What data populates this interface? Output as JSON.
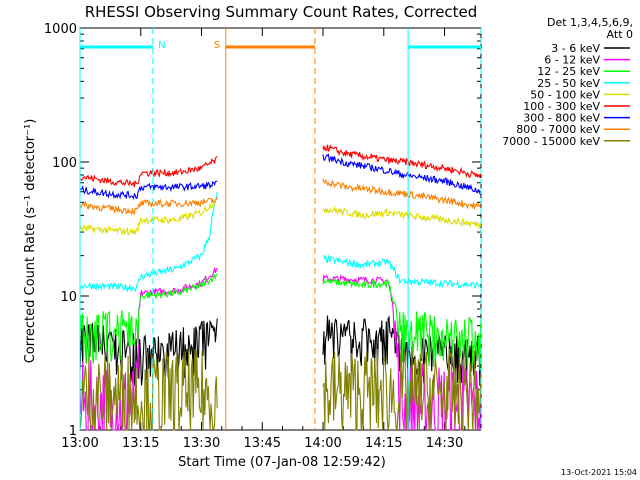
{
  "chart_data": {
    "type": "line",
    "title": "RHESSI Observing Summary Count Rates, Corrected",
    "xlabel": "Start Time (07-Jan-08 12:59:42)",
    "ylabel": "Corrected Count Rate (s⁻¹ detector⁻¹)",
    "yscale": "log",
    "ylim": [
      1,
      1000
    ],
    "xlim_minutes": [
      0,
      99
    ],
    "x_ticks": [
      {
        "m": 0,
        "label": "13:00"
      },
      {
        "m": 15,
        "label": "13:15"
      },
      {
        "m": 30,
        "label": "13:30"
      },
      {
        "m": 45,
        "label": "13:45"
      },
      {
        "m": 60,
        "label": "14:00"
      },
      {
        "m": 75,
        "label": "14:15"
      },
      {
        "m": 90,
        "label": "14:30"
      }
    ],
    "y_ticks": [
      {
        "v": 1,
        "label": "1"
      },
      {
        "v": 10,
        "label": "10"
      },
      {
        "v": 100,
        "label": "100"
      },
      {
        "v": 1000,
        "label": "1000"
      }
    ],
    "legend_header": [
      "Det 1,3,4,5,6,9,",
      "Att 0"
    ],
    "legend_position": "right",
    "timestamp": "13-Oct-2021 15:04",
    "gap_minutes": [
      34,
      60
    ],
    "series": [
      {
        "name": "3 - 6 keV",
        "color": "#000000",
        "segments": [
          {
            "points": [
              [
                0,
                4.7
              ],
              [
                18,
                3.4
              ],
              [
                30,
                4.5
              ],
              [
                34,
                5.0
              ]
            ]
          },
          {
            "points": [
              [
                60,
                5.2
              ],
              [
                68,
                4.6
              ],
              [
                76,
                5.0
              ],
              [
                79,
                3.6
              ],
              [
                90,
                3.6
              ],
              [
                99,
                3.5
              ]
            ]
          }
        ]
      },
      {
        "name": "6 - 12 keV",
        "color": "#ff00ff",
        "segments": [
          {
            "points": [
              [
                0,
                1.5
              ],
              [
                14,
                1.5
              ],
              [
                15,
                10.5
              ],
              [
                24,
                11.0
              ],
              [
                30,
                12.5
              ],
              [
                34,
                16.0
              ]
            ]
          },
          {
            "points": [
              [
                60,
                13.5
              ],
              [
                76,
                13.0
              ],
              [
                79,
                1.5
              ],
              [
                99,
                1.5
              ]
            ]
          }
        ]
      },
      {
        "name": "12 - 25 keV",
        "color": "#00ff00",
        "segments": [
          {
            "points": [
              [
                0,
                5.5
              ],
              [
                14,
                5.5
              ],
              [
                15,
                10.0
              ],
              [
                24,
                10.5
              ],
              [
                30,
                12.0
              ],
              [
                34,
                14.5
              ]
            ]
          },
          {
            "points": [
              [
                60,
                13.0
              ],
              [
                70,
                12.0
              ],
              [
                76,
                12.5
              ],
              [
                79,
                5.5
              ],
              [
                99,
                4.8
              ]
            ]
          }
        ]
      },
      {
        "name": "25 - 50 keV",
        "color": "#00ffff",
        "segments": [
          {
            "points": [
              [
                0,
                12.0
              ],
              [
                14,
                11.5
              ],
              [
                15,
                14.0
              ],
              [
                24,
                16.0
              ],
              [
                30,
                20.0
              ],
              [
                32,
                28.0
              ],
              [
                34,
                60.0
              ]
            ]
          },
          {
            "points": [
              [
                60,
                19.0
              ],
              [
                70,
                17.0
              ],
              [
                76,
                18.0
              ],
              [
                79,
                13.0
              ],
              [
                99,
                12.0
              ]
            ]
          }
        ]
      },
      {
        "name": "50 - 100 keV",
        "color": "#dddd00",
        "segments": [
          {
            "points": [
              [
                0,
                32.0
              ],
              [
                14,
                30.0
              ],
              [
                15,
                37.0
              ],
              [
                24,
                37.0
              ],
              [
                30,
                42.0
              ],
              [
                34,
                52.0
              ]
            ]
          },
          {
            "points": [
              [
                60,
                45.0
              ],
              [
                70,
                40.0
              ],
              [
                76,
                42.0
              ],
              [
                80,
                40.0
              ],
              [
                90,
                37.0
              ],
              [
                99,
                34.0
              ]
            ]
          }
        ]
      },
      {
        "name": "100 - 300 keV",
        "color": "#ff0000",
        "segments": [
          {
            "points": [
              [
                0,
                78.0
              ],
              [
                7,
                72.0
              ],
              [
                14,
                68.0
              ],
              [
                15,
                83.0
              ],
              [
                24,
                83.0
              ],
              [
                30,
                90.0
              ],
              [
                34,
                104.0
              ]
            ]
          },
          {
            "points": [
              [
                60,
                130.0
              ],
              [
                66,
                115.0
              ],
              [
                76,
                103.0
              ],
              [
                80,
                100.0
              ],
              [
                90,
                90.0
              ],
              [
                99,
                78.0
              ]
            ]
          }
        ]
      },
      {
        "name": "300 - 800 keV",
        "color": "#0000ff",
        "segments": [
          {
            "points": [
              [
                0,
                62.0
              ],
              [
                7,
                58.0
              ],
              [
                14,
                56.0
              ],
              [
                15,
                65.0
              ],
              [
                24,
                65.0
              ],
              [
                30,
                66.0
              ],
              [
                34,
                68.0
              ]
            ]
          },
          {
            "points": [
              [
                60,
                110.0
              ],
              [
                66,
                98.0
              ],
              [
                76,
                86.0
              ],
              [
                80,
                80.0
              ],
              [
                90,
                72.0
              ],
              [
                99,
                60.0
              ]
            ]
          }
        ]
      },
      {
        "name": "800 - 7000 keV",
        "color": "#ff8000",
        "segments": [
          {
            "points": [
              [
                0,
                48.0
              ],
              [
                7,
                45.0
              ],
              [
                14,
                43.0
              ],
              [
                15,
                49.0
              ],
              [
                24,
                49.0
              ],
              [
                30,
                50.0
              ],
              [
                34,
                52.0
              ]
            ]
          },
          {
            "points": [
              [
                60,
                72.0
              ],
              [
                66,
                65.0
              ],
              [
                76,
                60.0
              ],
              [
                80,
                58.0
              ],
              [
                90,
                52.0
              ],
              [
                99,
                46.0
              ]
            ]
          }
        ]
      },
      {
        "name": "7000 - 15000 keV",
        "color": "#808000",
        "segments": [
          {
            "points": [
              [
                0,
                1.8
              ],
              [
                34,
                1.8
              ]
            ]
          },
          {
            "points": [
              [
                60,
                1.9
              ],
              [
                99,
                1.8
              ]
            ]
          }
        ]
      }
    ],
    "flags": [
      {
        "label": "N",
        "color": "#00ffff",
        "bars_minutes": [
          [
            0,
            18
          ],
          [
            81,
            99
          ]
        ],
        "lines_minutes": [
          0,
          18,
          81,
          99
        ]
      },
      {
        "label": "S",
        "color": "#ff8000",
        "bars_minutes": [
          [
            36,
            58
          ]
        ],
        "lines_minutes": [
          36,
          58
        ]
      }
    ]
  }
}
